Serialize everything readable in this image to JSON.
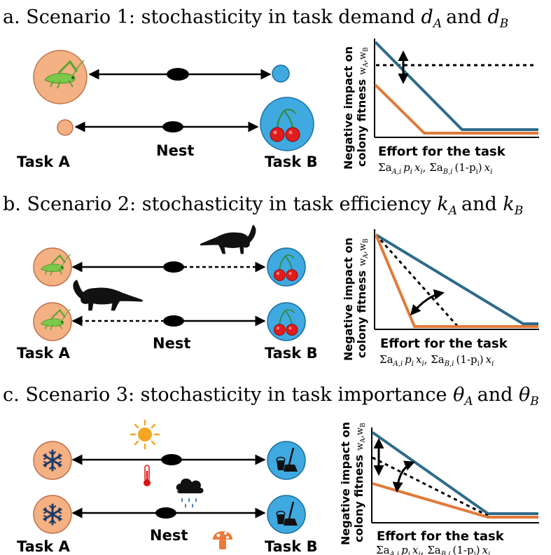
{
  "panels": [
    {
      "letter": "a.",
      "title_prefix": "Scenario 1: stochasticity in  task demand",
      "var_a": "d",
      "sub_a": "A",
      "conj": "and",
      "var_b": "d",
      "sub_b": "B"
    },
    {
      "letter": "b.",
      "title_prefix": "Scenario 2: stochasticity in  task efficiency",
      "var_a": "k",
      "sub_a": "A",
      "conj": "and",
      "var_b": "k",
      "sub_b": "B"
    },
    {
      "letter": "c.",
      "title_prefix": "Scenario 3: stochasticity in  task importance",
      "var_a": "θ",
      "sub_a": "A",
      "conj": "and",
      "var_b": "θ",
      "sub_b": "B"
    }
  ],
  "labels": {
    "task_a": "Task A",
    "task_b": "Task B",
    "nest": "Nest"
  },
  "axes": {
    "ylabel_line1": "Negative impact on",
    "ylabel_line2": "colony fitness",
    "ylabel_w": "w",
    "ylabel_sub_a": "A",
    "ylabel_comma": ",",
    "ylabel_sub_b": "B",
    "xlabel": "Effort for the task",
    "formula_sum": "Σa",
    "formula_sub_a": "A,i",
    "formula_p": "p",
    "formula_i": "i",
    "formula_x": "x",
    "formula_sep": ", ",
    "formula_sub_b": "B,i",
    "formula_one_minus": "(1-p",
    "formula_close": ")"
  },
  "colors": {
    "task_a": "#f4b183",
    "task_b": "#3fa9e0",
    "blue_line": "#2e6b8a",
    "orange_line": "#e07a3a",
    "mushroom": "#ec7a3c",
    "sun": "#f5a623",
    "snowflake": "#1d3a6b"
  },
  "icons": {
    "grasshopper": "grasshopper-icon",
    "cherries": "cherry-icon",
    "anteater": "anteater-icon",
    "snowflake": "snowflake-icon",
    "broom_bucket": "broom-bucket-icon",
    "sun": "sun-icon",
    "thermometer": "thermometer-icon",
    "rain_cloud": "rain-cloud-icon",
    "mushroom": "mushroom-icon"
  }
}
